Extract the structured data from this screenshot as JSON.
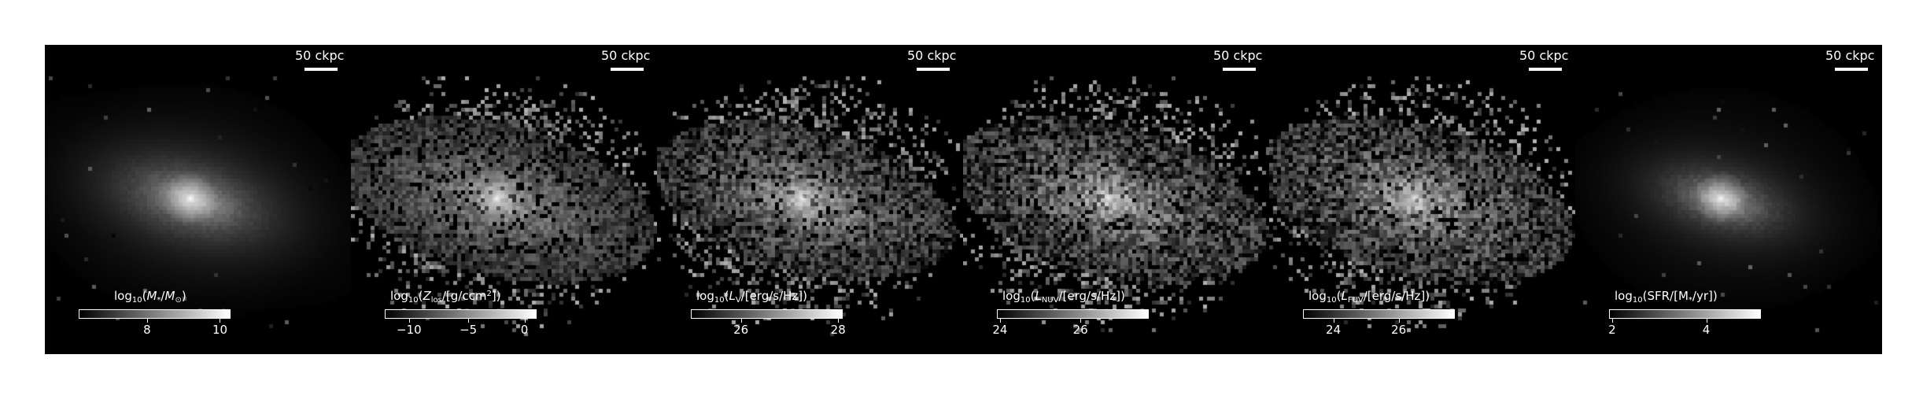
{
  "scalebar_text": "50 ckpc",
  "panels": [
    {
      "id": "mass",
      "label_html": "log<sub>10</sub>(<i>M</i><sub>*</sub>/<i>M</i><sub>⊙</sub>)",
      "ticks": [
        "8",
        "10"
      ],
      "tick_fracs": [
        0.45,
        0.93
      ]
    },
    {
      "id": "metallicity",
      "label_html": "log<sub>10</sub>(<i>Z</i><sub>los</sub>/[g/ccm<sup>2</sup>])",
      "ticks": [
        "−10",
        "−5",
        "0"
      ],
      "tick_fracs": [
        0.16,
        0.55,
        0.92
      ]
    },
    {
      "id": "lv",
      "label_html": "log<sub>10</sub>(<i>L</i><sub>V</sub>/[erg/s/Hz])",
      "ticks": [
        "26",
        "28"
      ],
      "tick_fracs": [
        0.33,
        0.97
      ]
    },
    {
      "id": "lnuv",
      "label_html": "log<sub>10</sub>(<i>L</i><sub>NUV</sub>/[erg/s/Hz])",
      "ticks": [
        "24",
        "26"
      ],
      "tick_fracs": [
        0.02,
        0.55
      ]
    },
    {
      "id": "lfuv",
      "label_html": "log<sub>10</sub>(<i>L</i><sub>FUV</sub>/[erg/s/Hz])",
      "ticks": [
        "24",
        "26"
      ],
      "tick_fracs": [
        0.2,
        0.63
      ]
    },
    {
      "id": "sfr",
      "label_html": "log<sub>10</sub>(SFR/[M<sub>*</sub>/yr])",
      "ticks": [
        "2",
        "4"
      ],
      "tick_fracs": [
        0.02,
        0.64
      ]
    }
  ]
}
